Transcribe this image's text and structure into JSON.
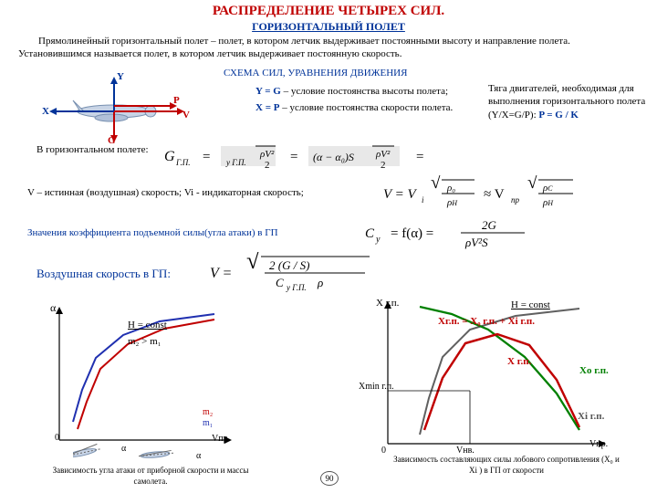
{
  "title": "РАСПРЕДЕЛЕНИЕ ЧЕТЫРЕХ СИЛ.",
  "subtitle": "ГОРИЗОНТАЛЬНЫЙ ПОЛЕТ",
  "para1": "Прямолинейный горизонтальный полет – полет, в котором летчик выдерживает постоянными высоту и направление полета. Установившимся называется полет, в котором летчик выдерживает постоянную скорость.",
  "scheme_heading": "СХЕМА СИЛ, УРАВНЕНИЯ ДВИЖЕНИЯ",
  "cond1_lhs": "Y = G",
  "cond1_rhs": "– условие постоянства высоты полета;",
  "cond2_lhs": "X = P",
  "cond2_rhs": "– условие постоянства скорости полета.",
  "thrust_note": "Тяга двигателей, необходимая для выполнения горизонтального полета (Y/X=G/P):",
  "thrust_eq": "P = G / K",
  "hpol_label": "В горизонтальном полете:",
  "vel_note": "V – истинная (воздушная) скорость; Vi - индикаторная скорость;",
  "cy_note": "Значения коэффициента подъемной силы(угла атаки) в ГП",
  "vair_note": "Воздушная скорость в ГП:",
  "plane": {
    "X": "X",
    "Y": "Y",
    "G": "G",
    "P": "P",
    "V": "V"
  },
  "chart1": {
    "type": "line",
    "xlabel": "Vпр.",
    "ylabel": "α",
    "annot": "H = const",
    "cap": "Зависимость угла атаки от приборной скорости и массы самолета.",
    "legend_above": "m₂ > m₁",
    "m1": "m₁",
    "m2": "m₂",
    "alpha": "α",
    "colors": {
      "m1": "#2030b0",
      "m2": "#c00000",
      "axis": "#000"
    },
    "curves": {
      "m1": [
        [
          15,
          20
        ],
        [
          25,
          55
        ],
        [
          40,
          90
        ],
        [
          70,
          115
        ],
        [
          110,
          130
        ],
        [
          170,
          138
        ]
      ],
      "m2": [
        [
          20,
          12
        ],
        [
          30,
          42
        ],
        [
          45,
          78
        ],
        [
          75,
          105
        ],
        [
          115,
          122
        ],
        [
          170,
          132
        ]
      ]
    },
    "small_alpha1": "α",
    "small_alpha2": "α"
  },
  "chart2": {
    "type": "line",
    "xlabel": "Vпр.",
    "ylabel": "X г.п.",
    "annot": "H = const",
    "cap": "Зависимость составляющих силы лобового сопротивления (X₀ и Xi ) в ГП от скорости",
    "Xmin": "Xmin г.п.",
    "Vnv": "Vнв.",
    "eq": "Xг.п. = X₀ г.п. + Xi г.п.",
    "names": {
      "sum": "X г.п.",
      "x0": "Xо г.п.",
      "xi": "Xi г.п."
    },
    "colors": {
      "sum": "#c00000",
      "x0": "#008000",
      "xi": "#606060",
      "axis": "#000"
    },
    "curves": {
      "xi": [
        [
          35,
          10
        ],
        [
          45,
          50
        ],
        [
          60,
          95
        ],
        [
          90,
          125
        ],
        [
          140,
          140
        ],
        [
          210,
          148
        ]
      ],
      "x0": [
        [
          35,
          150
        ],
        [
          70,
          142
        ],
        [
          110,
          125
        ],
        [
          150,
          95
        ],
        [
          185,
          55
        ],
        [
          210,
          15
        ]
      ],
      "sum": [
        [
          40,
          15
        ],
        [
          60,
          72
        ],
        [
          85,
          110
        ],
        [
          120,
          120
        ],
        [
          155,
          108
        ],
        [
          185,
          70
        ],
        [
          210,
          18
        ]
      ]
    }
  },
  "page": "90"
}
